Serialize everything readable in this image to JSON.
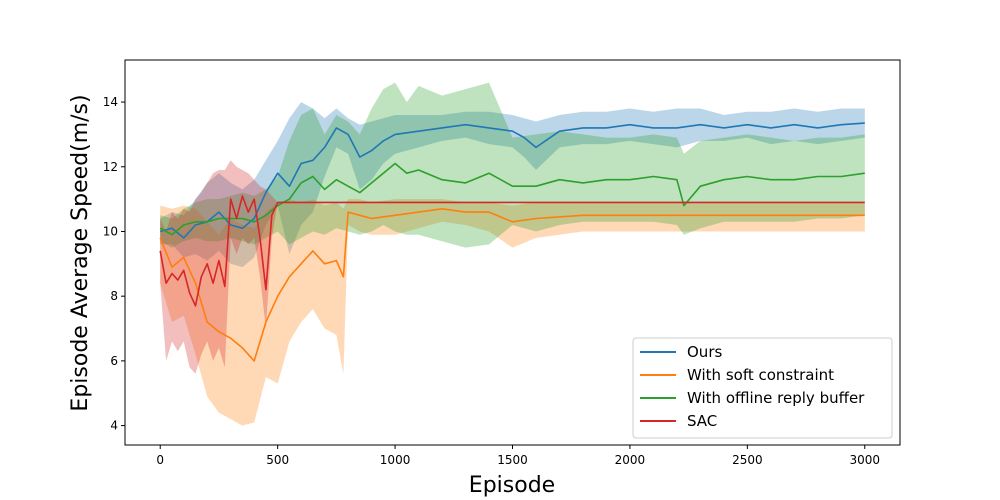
{
  "chart_data": {
    "type": "line",
    "title": "",
    "xlabel": "Episode",
    "ylabel": "Episode Average Speed(m/s)",
    "xlim": [
      -150,
      3150
    ],
    "ylim": [
      3.4,
      15.3
    ],
    "xticks": [
      0,
      500,
      1000,
      1500,
      2000,
      2500,
      3000
    ],
    "yticks": [
      4,
      6,
      8,
      10,
      12,
      14
    ],
    "legend_position": "lower-right",
    "series": [
      {
        "name": "Ours",
        "color": "#1f77b4",
        "x": [
          0,
          50,
          100,
          150,
          200,
          250,
          300,
          350,
          400,
          450,
          500,
          550,
          600,
          650,
          700,
          750,
          800,
          850,
          900,
          950,
          1000,
          1100,
          1200,
          1300,
          1400,
          1500,
          1550,
          1600,
          1700,
          1800,
          1900,
          2000,
          2100,
          2200,
          2300,
          2400,
          2500,
          2600,
          2700,
          2800,
          2900,
          3000
        ],
        "y": [
          10.0,
          10.1,
          9.8,
          10.2,
          10.3,
          10.6,
          10.2,
          10.1,
          10.4,
          11.2,
          11.8,
          11.4,
          12.1,
          12.2,
          12.6,
          13.2,
          13.0,
          12.3,
          12.5,
          12.8,
          13.0,
          13.1,
          13.2,
          13.3,
          13.2,
          13.1,
          12.9,
          12.6,
          13.1,
          13.2,
          13.2,
          13.3,
          13.2,
          13.2,
          13.3,
          13.2,
          13.3,
          13.2,
          13.3,
          13.2,
          13.3,
          13.35
        ],
        "upper": [
          10.4,
          10.6,
          10.5,
          11.0,
          11.5,
          11.8,
          11.5,
          11.3,
          11.6,
          12.2,
          12.8,
          13.5,
          14.0,
          13.8,
          13.5,
          13.8,
          13.5,
          13.3,
          13.4,
          13.5,
          13.6,
          13.6,
          13.6,
          13.7,
          13.7,
          13.6,
          13.5,
          13.4,
          13.6,
          13.7,
          13.7,
          13.8,
          13.7,
          13.8,
          13.8,
          13.6,
          13.7,
          13.7,
          13.8,
          13.7,
          13.8,
          13.8
        ],
        "lower": [
          9.6,
          9.6,
          9.2,
          9.3,
          9.1,
          9.4,
          9.0,
          8.9,
          9.2,
          10.2,
          10.8,
          9.3,
          10.2,
          10.6,
          11.7,
          12.6,
          12.4,
          11.3,
          11.6,
          12.1,
          12.4,
          12.6,
          12.8,
          12.9,
          12.7,
          12.6,
          12.3,
          11.9,
          12.6,
          12.7,
          12.7,
          12.8,
          12.7,
          12.6,
          12.8,
          12.8,
          12.9,
          12.7,
          12.8,
          12.7,
          12.8,
          12.9
        ]
      },
      {
        "name": "With soft constraint",
        "color": "#ff7f0e",
        "x": [
          0,
          50,
          100,
          150,
          200,
          250,
          300,
          350,
          400,
          450,
          500,
          550,
          600,
          650,
          700,
          750,
          780,
          800,
          850,
          900,
          1000,
          1100,
          1200,
          1300,
          1400,
          1500,
          1600,
          1800,
          2000,
          2200,
          2400,
          2600,
          2800,
          3000
        ],
        "y": [
          9.8,
          8.9,
          9.2,
          8.4,
          7.2,
          6.9,
          6.7,
          6.4,
          6.0,
          7.2,
          8.0,
          8.6,
          9.0,
          9.4,
          9.0,
          9.1,
          8.6,
          10.6,
          10.5,
          10.4,
          10.5,
          10.6,
          10.7,
          10.6,
          10.6,
          10.3,
          10.4,
          10.5,
          10.5,
          10.5,
          10.5,
          10.5,
          10.5,
          10.5
        ],
        "upper": [
          10.8,
          10.7,
          10.8,
          10.7,
          10.3,
          9.9,
          10.4,
          10.2,
          10.1,
          10.6,
          10.9,
          11.0,
          10.9,
          11.0,
          10.8,
          10.9,
          10.7,
          11.0,
          11.0,
          10.9,
          11.0,
          11.0,
          11.0,
          10.9,
          10.9,
          10.8,
          10.9,
          10.9,
          10.9,
          10.9,
          10.9,
          10.9,
          10.9,
          10.9
        ],
        "lower": [
          8.4,
          7.2,
          7.4,
          6.2,
          4.9,
          4.4,
          4.2,
          4.0,
          4.1,
          5.5,
          5.3,
          6.6,
          7.2,
          7.6,
          7.0,
          6.8,
          5.6,
          10.2,
          10.0,
          9.9,
          9.9,
          10.1,
          10.3,
          10.2,
          10.0,
          9.5,
          9.8,
          10.0,
          10.0,
          10.0,
          10.0,
          10.0,
          10.0,
          10.0
        ]
      },
      {
        "name": "With offline reply buffer",
        "color": "#2ca02c",
        "x": [
          0,
          50,
          100,
          150,
          200,
          250,
          300,
          350,
          400,
          450,
          500,
          550,
          600,
          650,
          700,
          750,
          800,
          850,
          900,
          950,
          1000,
          1050,
          1100,
          1200,
          1300,
          1400,
          1500,
          1600,
          1700,
          1800,
          1900,
          2000,
          2100,
          2200,
          2230,
          2300,
          2400,
          2500,
          2600,
          2700,
          2800,
          2900,
          3000
        ],
        "y": [
          10.1,
          9.9,
          10.2,
          10.3,
          10.3,
          10.4,
          10.4,
          10.4,
          10.3,
          10.5,
          10.8,
          11.0,
          11.5,
          11.7,
          11.3,
          11.6,
          11.4,
          11.2,
          11.5,
          11.8,
          12.1,
          11.8,
          11.9,
          11.6,
          11.5,
          11.8,
          11.4,
          11.4,
          11.6,
          11.5,
          11.6,
          11.6,
          11.7,
          11.6,
          10.8,
          11.4,
          11.6,
          11.7,
          11.6,
          11.6,
          11.7,
          11.7,
          11.8
        ],
        "upper": [
          10.5,
          10.4,
          10.7,
          10.9,
          11.0,
          11.0,
          11.1,
          11.2,
          11.1,
          11.3,
          11.7,
          12.8,
          13.6,
          13.8,
          13.0,
          13.6,
          13.4,
          13.0,
          13.8,
          14.4,
          14.6,
          14.0,
          14.5,
          14.2,
          14.4,
          14.6,
          12.9,
          13.0,
          13.1,
          13.0,
          12.9,
          12.9,
          13.0,
          12.9,
          12.4,
          12.8,
          12.9,
          13.0,
          12.9,
          12.8,
          12.9,
          12.9,
          13.0
        ],
        "lower": [
          9.7,
          9.5,
          9.7,
          9.8,
          9.7,
          9.7,
          9.8,
          9.7,
          9.6,
          9.8,
          10.0,
          9.6,
          9.8,
          10.0,
          9.9,
          10.1,
          10.0,
          9.9,
          10.0,
          10.2,
          10.0,
          9.9,
          9.9,
          9.7,
          9.5,
          9.6,
          10.2,
          10.0,
          10.2,
          10.3,
          10.3,
          10.3,
          10.3,
          10.2,
          9.9,
          10.1,
          10.3,
          10.3,
          10.3,
          10.3,
          10.4,
          10.4,
          10.5
        ]
      },
      {
        "name": "SAC",
        "color": "#d62728",
        "x": [
          0,
          25,
          50,
          75,
          100,
          125,
          150,
          175,
          200,
          225,
          250,
          275,
          300,
          325,
          350,
          375,
          400,
          425,
          450,
          475,
          500,
          550,
          600,
          800,
          1000,
          1500,
          2000,
          2500,
          3000
        ],
        "y": [
          9.4,
          8.4,
          8.7,
          8.5,
          8.8,
          8.1,
          7.7,
          8.6,
          9.0,
          8.4,
          9.1,
          8.3,
          11.0,
          10.4,
          11.1,
          10.6,
          11.0,
          9.8,
          8.2,
          10.5,
          10.9,
          10.9,
          10.9,
          10.9,
          10.9,
          10.9,
          10.9,
          10.9,
          10.9
        ],
        "upper": [
          10.4,
          10.0,
          10.6,
          10.4,
          10.7,
          10.6,
          11.0,
          11.2,
          11.5,
          11.8,
          11.9,
          11.9,
          12.2,
          12.0,
          11.9,
          11.8,
          11.6,
          11.4,
          11.3,
          11.1,
          10.9,
          10.9,
          10.9,
          10.9,
          10.9,
          10.9,
          10.9,
          10.9,
          10.9
        ],
        "lower": [
          8.4,
          6.0,
          6.6,
          6.3,
          6.6,
          5.8,
          5.6,
          6.2,
          6.6,
          6.0,
          6.4,
          5.8,
          9.8,
          9.3,
          9.8,
          9.6,
          9.8,
          8.6,
          7.0,
          9.8,
          10.9,
          10.9,
          10.9,
          10.9,
          10.9,
          10.9,
          10.9,
          10.9,
          10.9
        ]
      }
    ]
  }
}
